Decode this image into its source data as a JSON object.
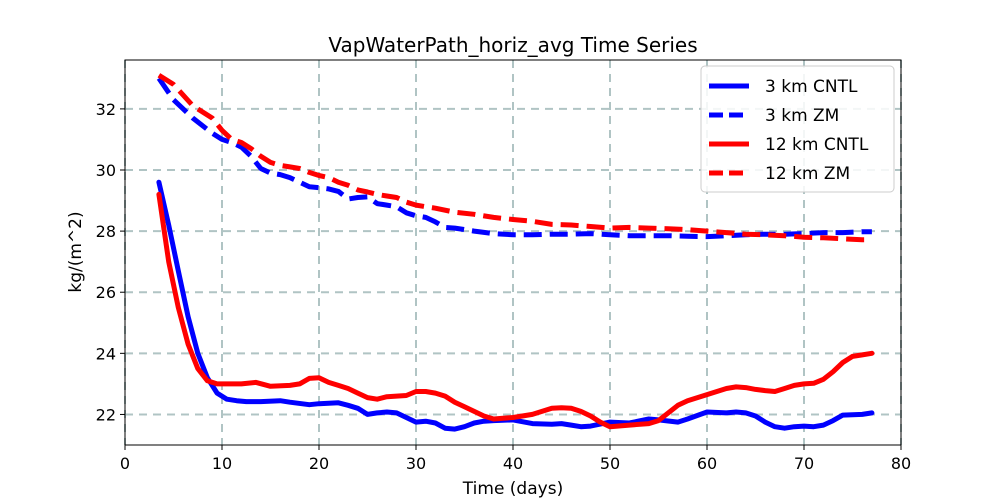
{
  "chart_data": {
    "type": "line",
    "title": "VapWaterPath_horiz_avg Time Series",
    "xlabel": "Time (days)",
    "ylabel": "kg/(m^2)",
    "xlim": [
      0,
      80
    ],
    "ylim": [
      21,
      33.6
    ],
    "xticks": [
      0,
      10,
      20,
      30,
      40,
      50,
      60,
      70,
      80
    ],
    "yticks": [
      22,
      24,
      26,
      28,
      30,
      32
    ],
    "grid": true,
    "legend_position": "top-right",
    "series": [
      {
        "name": "3 km CNTL",
        "color": "#0000ff",
        "style": "solid",
        "x": [
          3.5,
          4.5,
          5.5,
          6.5,
          7.5,
          8.5,
          9.5,
          10.5,
          11.5,
          12.5,
          14,
          16,
          17,
          19,
          20,
          22,
          23,
          24,
          25,
          26,
          27,
          28,
          29,
          30,
          31,
          32,
          33,
          34,
          35,
          36,
          37,
          38,
          40,
          42,
          44,
          45,
          46,
          47,
          48,
          50,
          52,
          54,
          55,
          57,
          58,
          60,
          62,
          63,
          64,
          65,
          66,
          67,
          68,
          69,
          70,
          71,
          72,
          73,
          74,
          76,
          77
        ],
        "values": [
          29.6,
          28.2,
          26.7,
          25.2,
          24.0,
          23.2,
          22.7,
          22.5,
          22.45,
          22.42,
          22.42,
          22.45,
          22.4,
          22.32,
          22.35,
          22.38,
          22.3,
          22.2,
          22.0,
          22.05,
          22.08,
          22.05,
          21.9,
          21.75,
          21.78,
          21.72,
          21.55,
          21.52,
          21.6,
          21.72,
          21.78,
          21.8,
          21.82,
          21.7,
          21.68,
          21.7,
          21.65,
          21.6,
          21.62,
          21.75,
          21.72,
          21.85,
          21.82,
          21.75,
          21.85,
          22.08,
          22.05,
          22.08,
          22.05,
          21.95,
          21.75,
          21.6,
          21.55,
          21.6,
          21.62,
          21.6,
          21.65,
          21.8,
          21.98,
          22.0,
          22.05
        ]
      },
      {
        "name": "3 km ZM",
        "color": "#0000ff",
        "style": "dashed",
        "x": [
          3.5,
          5,
          7,
          9,
          10,
          11,
          12,
          13,
          14,
          15,
          16,
          17,
          18,
          19,
          20,
          21,
          22,
          23,
          24,
          25,
          26,
          27,
          28,
          29,
          30,
          31,
          32,
          33,
          34,
          36,
          38,
          40,
          42,
          44,
          46,
          48,
          50,
          52,
          54,
          56,
          58,
          60,
          62,
          64,
          66,
          68,
          70,
          72,
          74,
          76,
          77
        ],
        "values": [
          33.0,
          32.3,
          31.7,
          31.2,
          31.0,
          30.9,
          30.75,
          30.45,
          30.05,
          29.9,
          29.85,
          29.75,
          29.6,
          29.45,
          29.42,
          29.38,
          29.3,
          29.05,
          29.1,
          29.12,
          28.9,
          28.85,
          28.8,
          28.6,
          28.5,
          28.45,
          28.3,
          28.12,
          28.1,
          28.0,
          27.92,
          27.88,
          27.88,
          27.9,
          27.9,
          27.92,
          27.88,
          27.85,
          27.85,
          27.85,
          27.83,
          27.82,
          27.85,
          27.88,
          27.9,
          27.9,
          27.92,
          27.95,
          27.95,
          27.98,
          27.98
        ]
      },
      {
        "name": "12 km CNTL",
        "color": "#ff0000",
        "style": "solid",
        "x": [
          3.5,
          4.5,
          5.5,
          6.5,
          7.5,
          8.5,
          9.5,
          10.5,
          12,
          13.5,
          15,
          17,
          18,
          19,
          20,
          21,
          22,
          23,
          24,
          25,
          26,
          27,
          28,
          29,
          30,
          31,
          32,
          33,
          34,
          35,
          36,
          37,
          38,
          40,
          42,
          44,
          45,
          46,
          47,
          48,
          49,
          50,
          52,
          54,
          55,
          56,
          57,
          58,
          60,
          62,
          63,
          64,
          65,
          66,
          67,
          68,
          69,
          70,
          71,
          72,
          73,
          74,
          75,
          76,
          77
        ],
        "values": [
          29.2,
          27.0,
          25.5,
          24.3,
          23.5,
          23.1,
          23.0,
          23.0,
          23.0,
          23.05,
          22.92,
          22.95,
          23.0,
          23.18,
          23.2,
          23.05,
          22.95,
          22.85,
          22.7,
          22.55,
          22.5,
          22.58,
          22.6,
          22.62,
          22.75,
          22.75,
          22.7,
          22.6,
          22.4,
          22.25,
          22.1,
          21.95,
          21.85,
          21.9,
          22.0,
          22.2,
          22.22,
          22.2,
          22.1,
          21.95,
          21.75,
          21.6,
          21.65,
          21.7,
          21.8,
          22.05,
          22.3,
          22.45,
          22.65,
          22.85,
          22.9,
          22.88,
          22.82,
          22.78,
          22.75,
          22.85,
          22.95,
          23.0,
          23.02,
          23.15,
          23.4,
          23.7,
          23.9,
          23.95,
          24.0
        ]
      },
      {
        "name": "12 km ZM",
        "color": "#ff0000",
        "style": "dashed",
        "x": [
          3.5,
          5,
          7,
          9,
          10,
          11,
          12,
          13,
          14,
          15,
          16,
          17,
          18,
          19,
          20,
          21,
          22,
          23,
          24,
          25,
          26,
          27,
          28,
          29,
          30,
          31,
          32,
          34,
          36,
          38,
          40,
          42,
          44,
          46,
          48,
          50,
          52,
          54,
          56,
          58,
          60,
          62,
          64,
          66,
          68,
          70,
          72,
          74,
          76,
          77
        ],
        "values": [
          33.1,
          32.8,
          32.1,
          31.7,
          31.3,
          31.0,
          30.9,
          30.7,
          30.45,
          30.25,
          30.15,
          30.1,
          30.05,
          29.92,
          29.82,
          29.75,
          29.6,
          29.5,
          29.35,
          29.28,
          29.2,
          29.15,
          29.1,
          28.95,
          28.85,
          28.8,
          28.75,
          28.62,
          28.55,
          28.45,
          28.38,
          28.32,
          28.22,
          28.2,
          28.15,
          28.1,
          28.12,
          28.1,
          28.08,
          28.05,
          28.0,
          27.95,
          27.9,
          27.88,
          27.85,
          27.8,
          27.78,
          27.75,
          27.72,
          27.72
        ]
      }
    ]
  }
}
